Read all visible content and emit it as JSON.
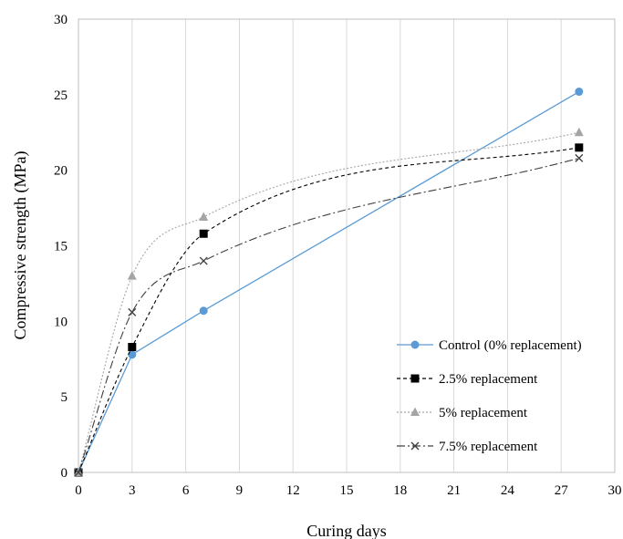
{
  "chart_data": {
    "type": "line",
    "xlabel": "Curing days",
    "ylabel": "Compressive strength (MPa)",
    "xlim": [
      0,
      30
    ],
    "ylim": [
      0,
      30
    ],
    "x_ticks": [
      "0",
      "3",
      "6",
      "9",
      "12",
      "15",
      "18",
      "21",
      "24",
      "27",
      "30"
    ],
    "y_ticks": [
      "0",
      "5",
      "10",
      "15",
      "20",
      "25",
      "30"
    ],
    "grid": "vertical",
    "legend_position": "bottom-right inside",
    "series": [
      {
        "name": "Control (0% replacement)",
        "x": [
          0,
          3,
          7,
          28
        ],
        "values": [
          0,
          7.8,
          10.7,
          25.2
        ],
        "color": "#5b9bd5",
        "marker": "circle",
        "line": "solid",
        "smooth": false
      },
      {
        "name": "2.5% replacement",
        "x": [
          0,
          3,
          7,
          28
        ],
        "values": [
          0,
          8.3,
          15.8,
          21.5
        ],
        "color": "#000000",
        "marker": "square",
        "line": "dashed",
        "smooth": true
      },
      {
        "name": "5% replacement",
        "x": [
          0,
          3,
          7,
          28
        ],
        "values": [
          0,
          13.0,
          16.9,
          22.5
        ],
        "color": "#a5a5a5",
        "marker": "triangle",
        "line": "dotted",
        "smooth": true
      },
      {
        "name": "7.5% replacement",
        "x": [
          0,
          3,
          7,
          28
        ],
        "values": [
          0,
          10.6,
          14.0,
          20.8
        ],
        "color": "#404040",
        "marker": "x",
        "line": "dashdot",
        "smooth": true
      }
    ]
  }
}
